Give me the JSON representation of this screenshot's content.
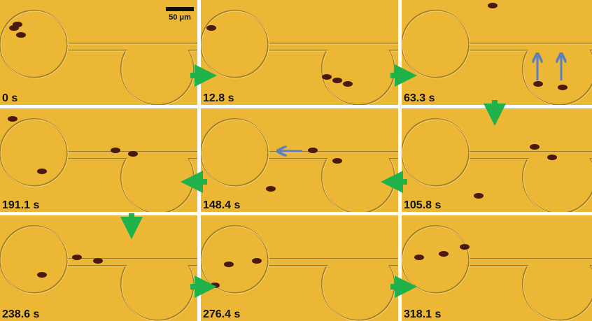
{
  "scale_bar": {
    "label": "50 μm"
  },
  "panels": [
    {
      "label": "0 s"
    },
    {
      "label": "12.8 s"
    },
    {
      "label": "63.3 s"
    },
    {
      "label": "191.1 s"
    },
    {
      "label": "148.4 s"
    },
    {
      "label": "105.8 s"
    },
    {
      "label": "238.6 s"
    },
    {
      "label": "276.4 s"
    },
    {
      "label": "318.1 s"
    }
  ]
}
